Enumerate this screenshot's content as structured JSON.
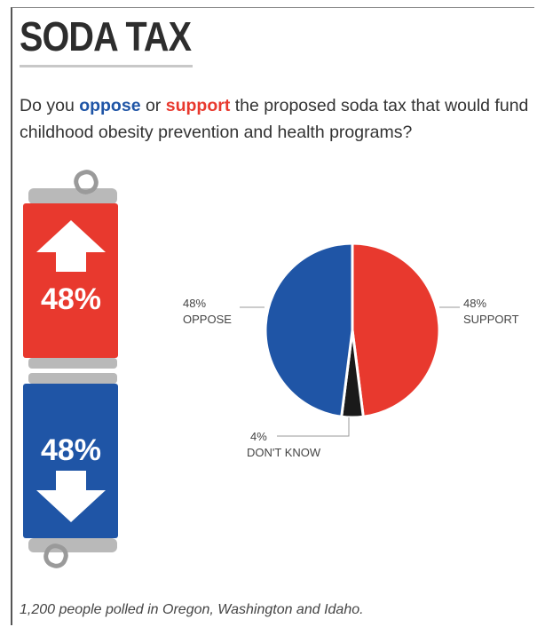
{
  "header": {
    "title": "SODA TAX",
    "question_prefix": "Do you ",
    "question_oppose": "oppose",
    "question_mid": " or ",
    "question_support": "support",
    "question_suffix": " the proposed soda tax that would fund childhood obesity prevention and health programs?"
  },
  "colors": {
    "support": "#e8392e",
    "oppose": "#1f55a6",
    "dont_know": "#1a1a1a",
    "can_top": "#b9b9b9"
  },
  "cans": {
    "support_label": "48%",
    "oppose_label": "48%"
  },
  "chart_data": {
    "type": "pie",
    "slices": [
      {
        "label": "SUPPORT",
        "value": 48,
        "value_label": "48%"
      },
      {
        "label": "DON'T KNOW",
        "value": 4,
        "value_label": "4%"
      },
      {
        "label": "OPPOSE",
        "value": 48,
        "value_label": "48%"
      }
    ]
  },
  "footnote": "1,200 people polled in Oregon, Washington and Idaho."
}
